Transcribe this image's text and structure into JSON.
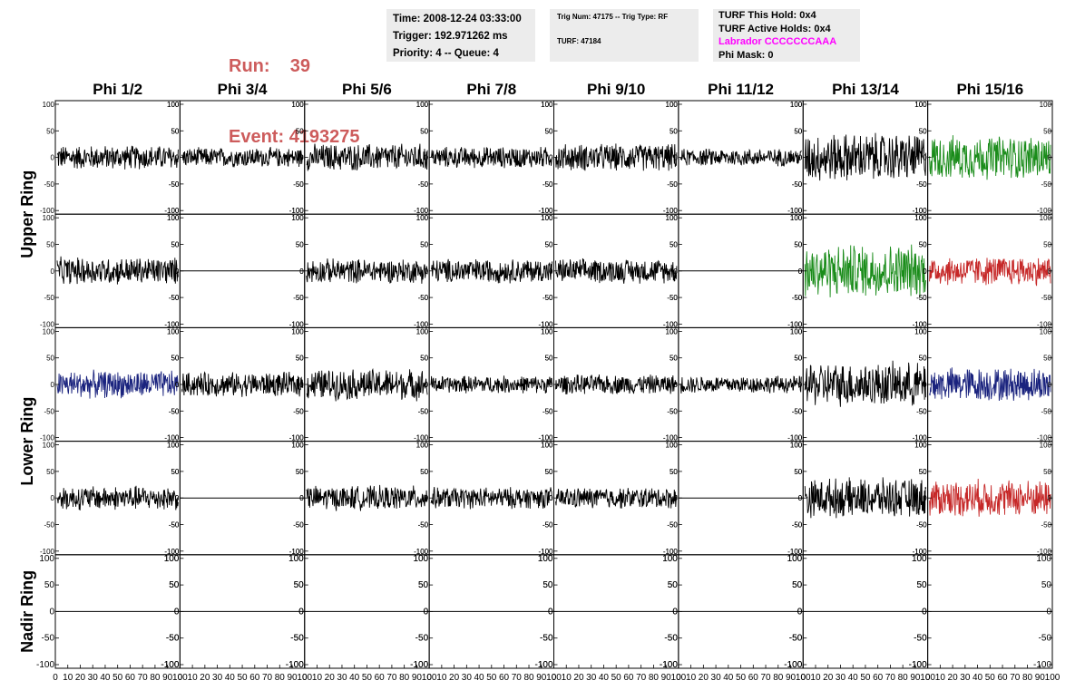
{
  "header": {
    "run_label": "Run:",
    "run_value": "39",
    "event_label": "Event:",
    "event_value": "4193275",
    "time": "Time: 2008-12-24 03:33:00",
    "trigger": "Trigger: 192.971262 ms",
    "priority": "Priority: 4 -- Queue: 4",
    "trig_num": "Trig Num: 47175 -- Trig Type: RF",
    "turf": "TURF: 47184",
    "turf_this_hold": "TURF This Hold: 0x4",
    "turf_active_holds": "TURF Active Holds: 0x4",
    "labrador": "Labrador CCCCCCCAAA",
    "phi_mask": "Phi Mask: 0"
  },
  "chart_data": {
    "type": "line",
    "columns": [
      "Phi 1/2",
      "Phi 3/4",
      "Phi 5/6",
      "Phi 7/8",
      "Phi 9/10",
      "Phi 11/12",
      "Phi 13/14",
      "Phi 15/16"
    ],
    "row_groups": [
      "Upper Ring",
      "Lower Ring",
      "Nadir Ring"
    ],
    "ylim": [
      -100,
      100
    ],
    "xlim": [
      0,
      100
    ],
    "y_ticks": [
      "100",
      "50",
      "0",
      "-50",
      "-100"
    ],
    "x_ticks": [
      "0",
      "10",
      "20",
      "30",
      "40",
      "50",
      "60",
      "70",
      "80",
      "90",
      "100"
    ],
    "colors": {
      "black": "#000000",
      "green": "#1a8c1a",
      "blue": "#1a237e",
      "red": "#c62828"
    },
    "panels": [
      [
        "noise25",
        "noise20",
        "noise28",
        "noise22",
        "noise28",
        "noise18",
        "noise50",
        "green45"
      ],
      [
        "noise28",
        "flat",
        "noise25",
        "noise25",
        "noise25",
        "flat",
        "green55",
        "red30"
      ],
      [
        "blue28",
        "noise25",
        "noise32",
        "noise18",
        "noise20",
        "noise18",
        "noise45",
        "blue35"
      ],
      [
        "noise25",
        "flat",
        "noise25",
        "noise22",
        "noise22",
        "flat",
        "noise40",
        "red38"
      ],
      [
        "flat",
        "flat",
        "flat",
        "flat",
        "flat",
        "flat",
        "flat",
        "flat"
      ]
    ]
  }
}
